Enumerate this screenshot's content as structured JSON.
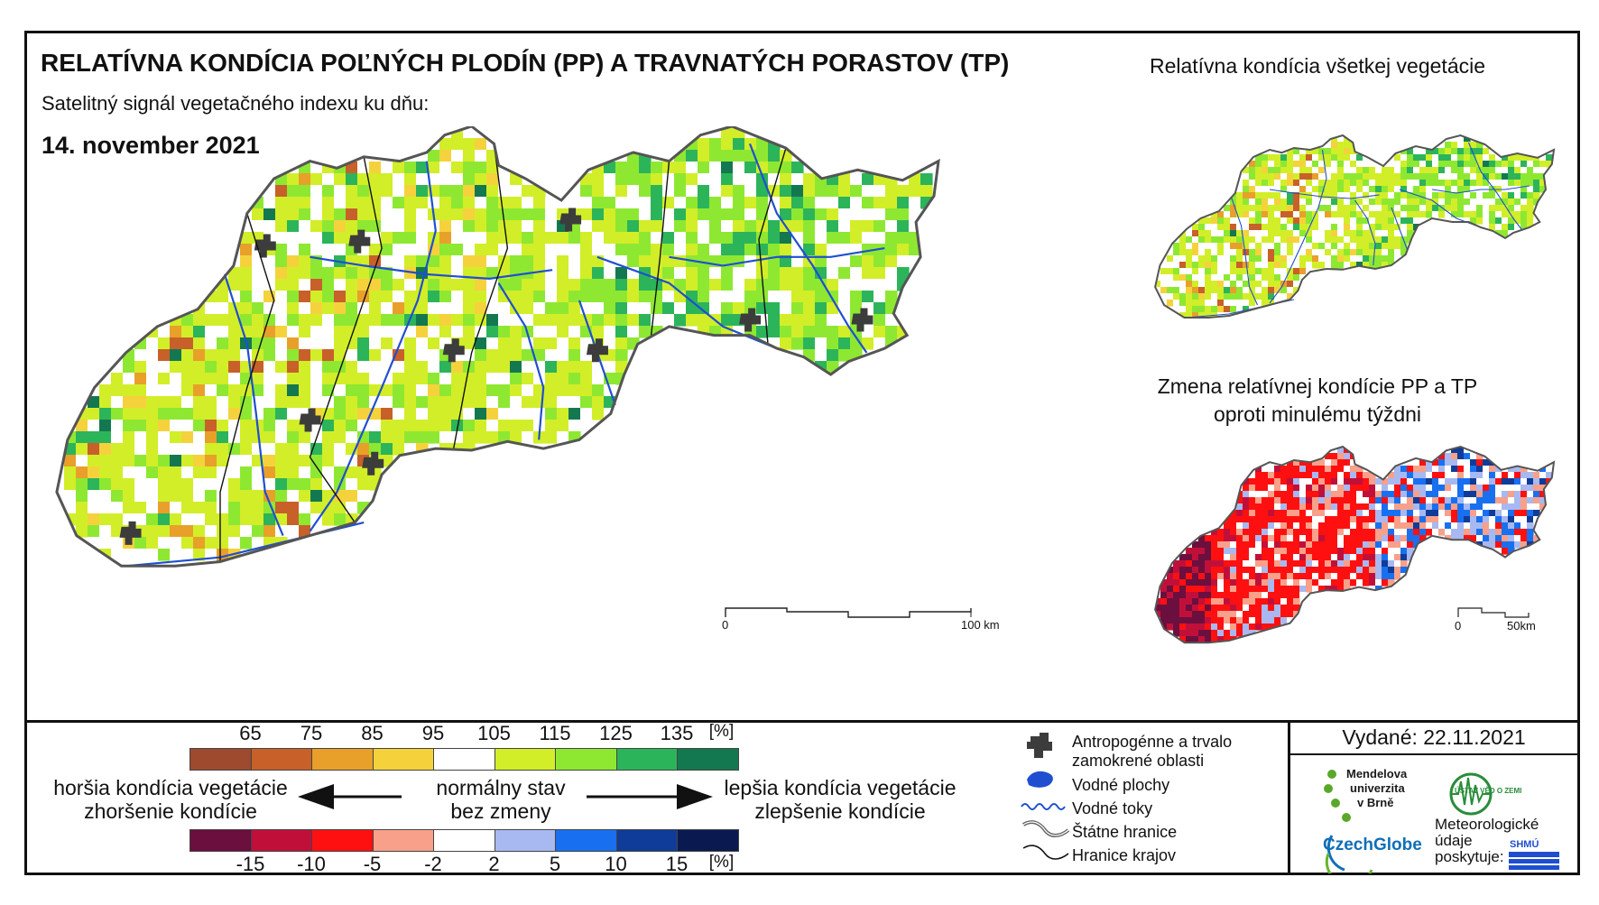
{
  "title": "RELATÍVNA KONDÍCIA POĽNÝCH PLODÍN (PP) A TRAVNATÝCH PORASTOV (TP)",
  "subtitle": "Satelitný signál vegetačného indexu ku dňu:",
  "date": "14. november 2021",
  "inset_top_title": "Relatívna kondícia všetkej vegetácie",
  "inset_bottom_title_line1": "Zmena relatívnej kondície PP a TP",
  "inset_bottom_title_line2": "oproti minulému týždni",
  "main_scale": {
    "zero": "0",
    "end": "100 km"
  },
  "inset_scale": {
    "zero": "0",
    "end": "50km"
  },
  "condition_legend": {
    "ticks": [
      "65",
      "75",
      "85",
      "95",
      "105",
      "115",
      "125",
      "135"
    ],
    "unit": "[%]",
    "colors": [
      "#9e4a2e",
      "#c8602a",
      "#e8a02a",
      "#f5d23c",
      "#ffffff",
      "#d2ee28",
      "#8ee832",
      "#2cb45a",
      "#137850"
    ]
  },
  "change_legend": {
    "ticks": [
      "-15",
      "-10",
      "-5",
      "-2",
      "2",
      "5",
      "10",
      "15"
    ],
    "unit": "[%]",
    "colors": [
      "#6b0f3f",
      "#c0103a",
      "#ff1010",
      "#f8a08a",
      "#ffffff",
      "#a8b8f0",
      "#1870f0",
      "#0f3c98",
      "#0a1a50"
    ]
  },
  "labels": {
    "worse_line1": "horšia kondícia vegetácie",
    "worse_line2": "zhoršenie kondície",
    "normal_line1": "normálny stav",
    "normal_line2": "bez zmeny",
    "better_line1": "lepšia kondícia vegetácie",
    "better_line2": "zlepšenie kondície"
  },
  "symbols": {
    "urban_line1": "Antropogénne a trvalo",
    "urban_line2": "zamokrené oblasti",
    "water_bodies": "Vodné plochy",
    "rivers": "Vodné toky",
    "state_border": "Štátne hranice",
    "region_border": "Hranice krajov"
  },
  "issued": "Vydané: 22.11.2021",
  "logos": {
    "mendel_line1": "Mendelova",
    "mendel_line2": "univerzita",
    "mendel_line3": "v Brně",
    "czechglobe": "CzechGlobe",
    "uvgz": "ÚSTAV VĚD O ZEMI",
    "meteo_line1": "Meteorologické",
    "meteo_line2": "údaje",
    "meteo_line3": "poskytuje:",
    "shmu": "SHMÚ"
  }
}
